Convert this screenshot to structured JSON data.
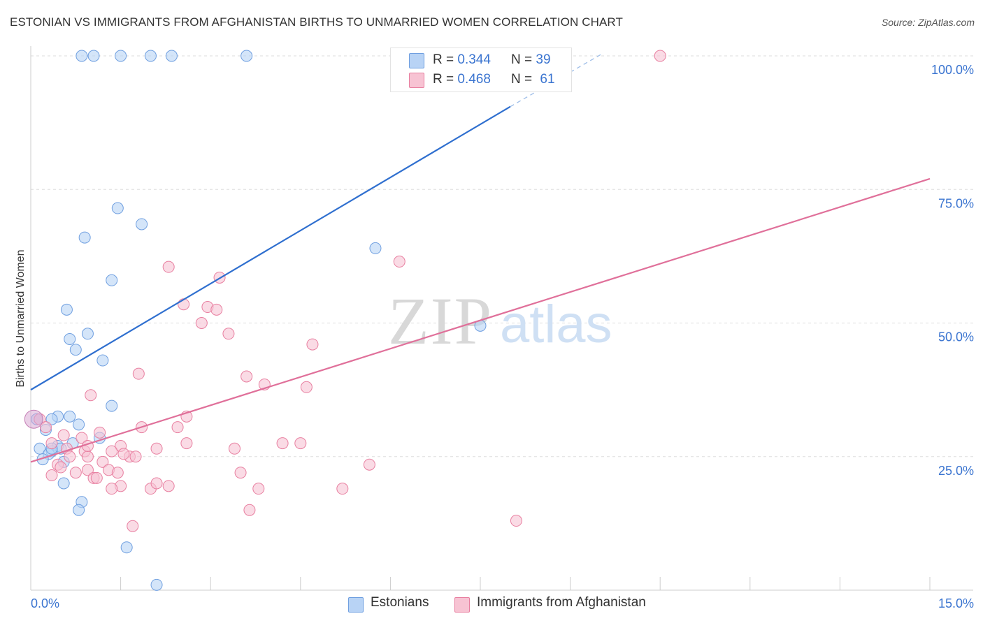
{
  "title": "ESTONIAN VS IMMIGRANTS FROM AFGHANISTAN BIRTHS TO UNMARRIED WOMEN CORRELATION CHART",
  "source": "Source: ZipAtlas.com",
  "watermark": {
    "zip": "ZIP",
    "atlas": "atlas"
  },
  "legend_top": [
    {
      "r_label": "R =",
      "r_value": "0.344",
      "n_label": "N =",
      "n_value": "39"
    },
    {
      "r_label": "R =",
      "r_value": "0.468",
      "n_label": "N =",
      "n_value": "61"
    }
  ],
  "legend_bottom": [
    "Estonians",
    "Immigrants from Afghanistan"
  ],
  "colors": {
    "estonians_fill": "#b8d3f5",
    "estonians_stroke": "#6f9fe0",
    "estonians_line": "#2f6fcf",
    "afghan_fill": "#f7c3d3",
    "afghan_stroke": "#e87fa0",
    "afghan_line": "#e0709a",
    "axis_label": "#3a74d0",
    "grid": "#dddddd"
  },
  "chart_data": {
    "type": "scatter",
    "title": "ESTONIAN VS IMMIGRANTS FROM AFGHANISTAN BIRTHS TO UNMARRIED WOMEN CORRELATION CHART",
    "xlabel": "",
    "ylabel": "Births to Unmarried Women",
    "xlim": [
      0,
      15
    ],
    "ylim": [
      0,
      100
    ],
    "x_tick_labels": [
      "0.0%",
      "15.0%"
    ],
    "y_tick_labels": [
      "25.0%",
      "50.0%",
      "75.0%",
      "100.0%"
    ],
    "y_ticks": [
      25,
      50,
      75,
      100
    ],
    "legend_position": "bottom",
    "series": [
      {
        "name": "Estonians",
        "R": 0.344,
        "N": 39,
        "trend": {
          "x0": 0.0,
          "y0": 37.5,
          "x1": 8.0,
          "y1": 90.5,
          "dash_to_x": 9.55,
          "dash_to_y": 100.5
        },
        "points": [
          [
            0.85,
            100
          ],
          [
            1.05,
            100
          ],
          [
            1.5,
            100
          ],
          [
            2.0,
            100
          ],
          [
            2.35,
            100
          ],
          [
            3.6,
            100
          ],
          [
            1.45,
            71.5
          ],
          [
            1.85,
            68.5
          ],
          [
            0.9,
            66
          ],
          [
            1.35,
            58
          ],
          [
            0.6,
            52.5
          ],
          [
            0.95,
            48
          ],
          [
            0.65,
            47
          ],
          [
            0.75,
            45
          ],
          [
            1.2,
            43
          ],
          [
            1.35,
            34.5
          ],
          [
            0.45,
            32.5
          ],
          [
            0.65,
            32.5
          ],
          [
            0.8,
            31
          ],
          [
            0.7,
            27.5
          ],
          [
            1.15,
            28.5
          ],
          [
            0.45,
            27
          ],
          [
            0.5,
            26.5
          ],
          [
            0.35,
            26
          ],
          [
            0.15,
            26.5
          ],
          [
            0.3,
            25.5
          ],
          [
            0.2,
            24.5
          ],
          [
            0.55,
            24
          ],
          [
            0.35,
            32
          ],
          [
            0.1,
            32
          ],
          [
            0.55,
            20
          ],
          [
            0.85,
            16.5
          ],
          [
            0.8,
            15
          ],
          [
            1.6,
            8
          ],
          [
            2.1,
            1
          ],
          [
            5.75,
            64
          ],
          [
            7.5,
            49.5
          ],
          [
            0.35,
            26.5
          ],
          [
            0.25,
            30
          ]
        ]
      },
      {
        "name": "Immigrants from Afghanistan",
        "R": 0.468,
        "N": 61,
        "trend": {
          "x0": 0.0,
          "y0": 24.0,
          "x1": 15.0,
          "y1": 77.0
        },
        "points": [
          [
            10.5,
            100
          ],
          [
            6.15,
            61.5
          ],
          [
            2.3,
            60.5
          ],
          [
            3.15,
            58.5
          ],
          [
            2.55,
            53.5
          ],
          [
            2.95,
            53
          ],
          [
            3.1,
            52.5
          ],
          [
            2.85,
            50
          ],
          [
            3.3,
            48
          ],
          [
            4.7,
            46
          ],
          [
            1.8,
            40.5
          ],
          [
            3.6,
            40
          ],
          [
            3.9,
            38.5
          ],
          [
            4.6,
            38
          ],
          [
            1.0,
            36.5
          ],
          [
            2.6,
            32.5
          ],
          [
            2.45,
            30.5
          ],
          [
            1.85,
            30.5
          ],
          [
            1.15,
            29.5
          ],
          [
            0.55,
            29
          ],
          [
            0.85,
            28.5
          ],
          [
            2.6,
            27.5
          ],
          [
            3.4,
            26.5
          ],
          [
            1.5,
            27
          ],
          [
            0.6,
            26.5
          ],
          [
            0.9,
            26
          ],
          [
            1.35,
            26
          ],
          [
            2.1,
            26.5
          ],
          [
            4.5,
            27.5
          ],
          [
            0.65,
            25
          ],
          [
            0.95,
            25
          ],
          [
            1.65,
            25
          ],
          [
            1.2,
            24
          ],
          [
            1.55,
            25.5
          ],
          [
            1.75,
            25
          ],
          [
            1.3,
            22.5
          ],
          [
            0.95,
            22.5
          ],
          [
            1.05,
            21
          ],
          [
            0.45,
            23.5
          ],
          [
            0.35,
            21.5
          ],
          [
            0.75,
            22
          ],
          [
            1.5,
            19.5
          ],
          [
            2.3,
            19.5
          ],
          [
            2.0,
            19
          ],
          [
            1.35,
            19
          ],
          [
            5.65,
            23.5
          ],
          [
            3.5,
            22
          ],
          [
            3.8,
            19
          ],
          [
            5.2,
            19
          ],
          [
            3.65,
            15
          ],
          [
            1.7,
            12
          ],
          [
            8.1,
            13
          ],
          [
            0.15,
            32
          ],
          [
            0.35,
            27.5
          ],
          [
            0.5,
            23
          ],
          [
            1.1,
            21
          ],
          [
            0.25,
            30.5
          ],
          [
            0.95,
            27
          ],
          [
            1.45,
            22
          ],
          [
            2.1,
            20
          ],
          [
            4.2,
            27.5
          ]
        ]
      }
    ]
  }
}
